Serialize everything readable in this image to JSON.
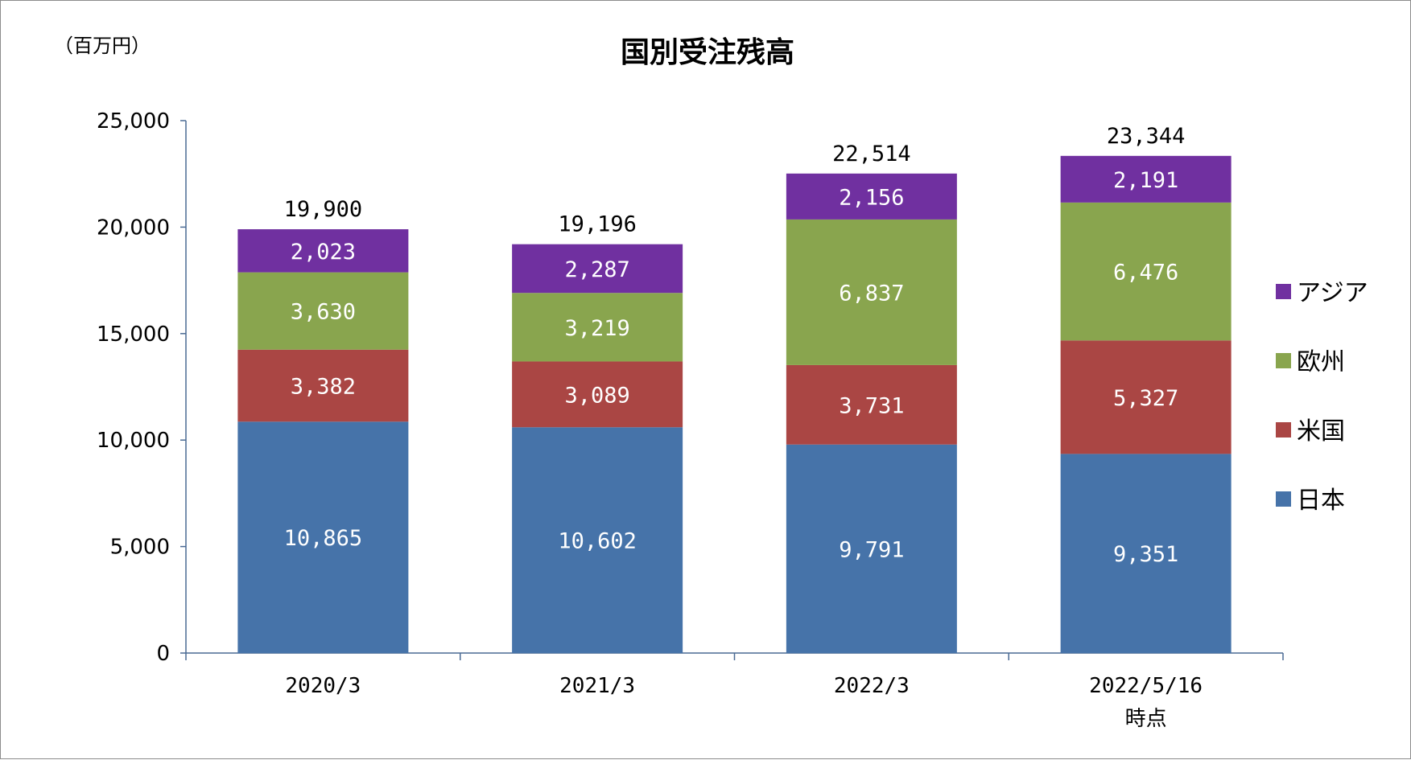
{
  "chart_data": {
    "type": "bar",
    "stacked": true,
    "title": "国別受注残高",
    "unit_label": "（百万円）",
    "categories": [
      [
        "2020/3"
      ],
      [
        "2021/3"
      ],
      [
        "2022/3"
      ],
      [
        "2022/5/16",
        "時点"
      ]
    ],
    "series": [
      {
        "name": "日本",
        "color": "#4673a9",
        "values": [
          10865,
          10602,
          9791,
          9351
        ]
      },
      {
        "name": "米国",
        "color": "#aa4644",
        "values": [
          3382,
          3089,
          3731,
          5327
        ]
      },
      {
        "name": "欧州",
        "color": "#89a54e",
        "values": [
          3630,
          3219,
          6837,
          6476
        ]
      },
      {
        "name": "アジア",
        "color": "#7030a0",
        "values": [
          2023,
          2287,
          2156,
          2191
        ]
      }
    ],
    "totals": [
      19900,
      19196,
      22514,
      23344
    ],
    "ylim": [
      0,
      25000
    ],
    "yticks": [
      0,
      5000,
      10000,
      15000,
      20000,
      25000
    ],
    "xlabel": "",
    "ylabel": "",
    "legend_position": "right",
    "grid": false
  }
}
